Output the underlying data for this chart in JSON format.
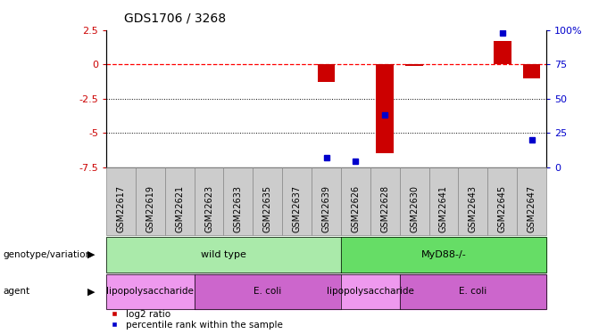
{
  "title": "GDS1706 / 3268",
  "samples": [
    "GSM22617",
    "GSM22619",
    "GSM22621",
    "GSM22623",
    "GSM22633",
    "GSM22635",
    "GSM22637",
    "GSM22639",
    "GSM22626",
    "GSM22628",
    "GSM22630",
    "GSM22641",
    "GSM22643",
    "GSM22645",
    "GSM22647"
  ],
  "log2_ratio": [
    0,
    0,
    0,
    0,
    0,
    0,
    0,
    -1.3,
    0,
    -6.5,
    -0.15,
    0,
    0,
    1.7,
    -1.0
  ],
  "percentile_rank": [
    null,
    null,
    null,
    null,
    null,
    null,
    null,
    7,
    4,
    38,
    null,
    null,
    null,
    98,
    20
  ],
  "ylim_left": [
    -7.5,
    2.5
  ],
  "ylim_right": [
    0,
    100
  ],
  "yticks_left": [
    2.5,
    0,
    -2.5,
    -5.0,
    -7.5
  ],
  "yticks_left_labels": [
    "2.5",
    "0",
    "-2.5",
    "-5",
    "-7.5"
  ],
  "yticks_right": [
    0,
    25,
    50,
    75,
    100
  ],
  "yticks_right_labels": [
    "0",
    "25",
    "50",
    "75",
    "100%"
  ],
  "dotted_lines": [
    -2.5,
    -5.0
  ],
  "bar_color": "#cc0000",
  "scatter_color": "#0000cc",
  "genotype_groups": [
    {
      "label": "wild type",
      "start": 0,
      "end": 8,
      "color": "#aaeaaa"
    },
    {
      "label": "MyD88-/-",
      "start": 8,
      "end": 15,
      "color": "#66dd66"
    }
  ],
  "agent_groups": [
    {
      "label": "lipopolysaccharide",
      "start": 0,
      "end": 3,
      "color": "#ee99ee"
    },
    {
      "label": "E. coli",
      "start": 3,
      "end": 8,
      "color": "#cc66cc"
    },
    {
      "label": "lipopolysaccharide",
      "start": 8,
      "end": 10,
      "color": "#ee99ee"
    },
    {
      "label": "E. coli",
      "start": 10,
      "end": 15,
      "color": "#cc66cc"
    }
  ],
  "left_label_color": "#cc0000",
  "right_label_color": "#0000cc",
  "tick_label_fontsize": 7,
  "tick_bg_color": "#cccccc",
  "tick_border_color": "#888888",
  "bar_width": 0.6
}
